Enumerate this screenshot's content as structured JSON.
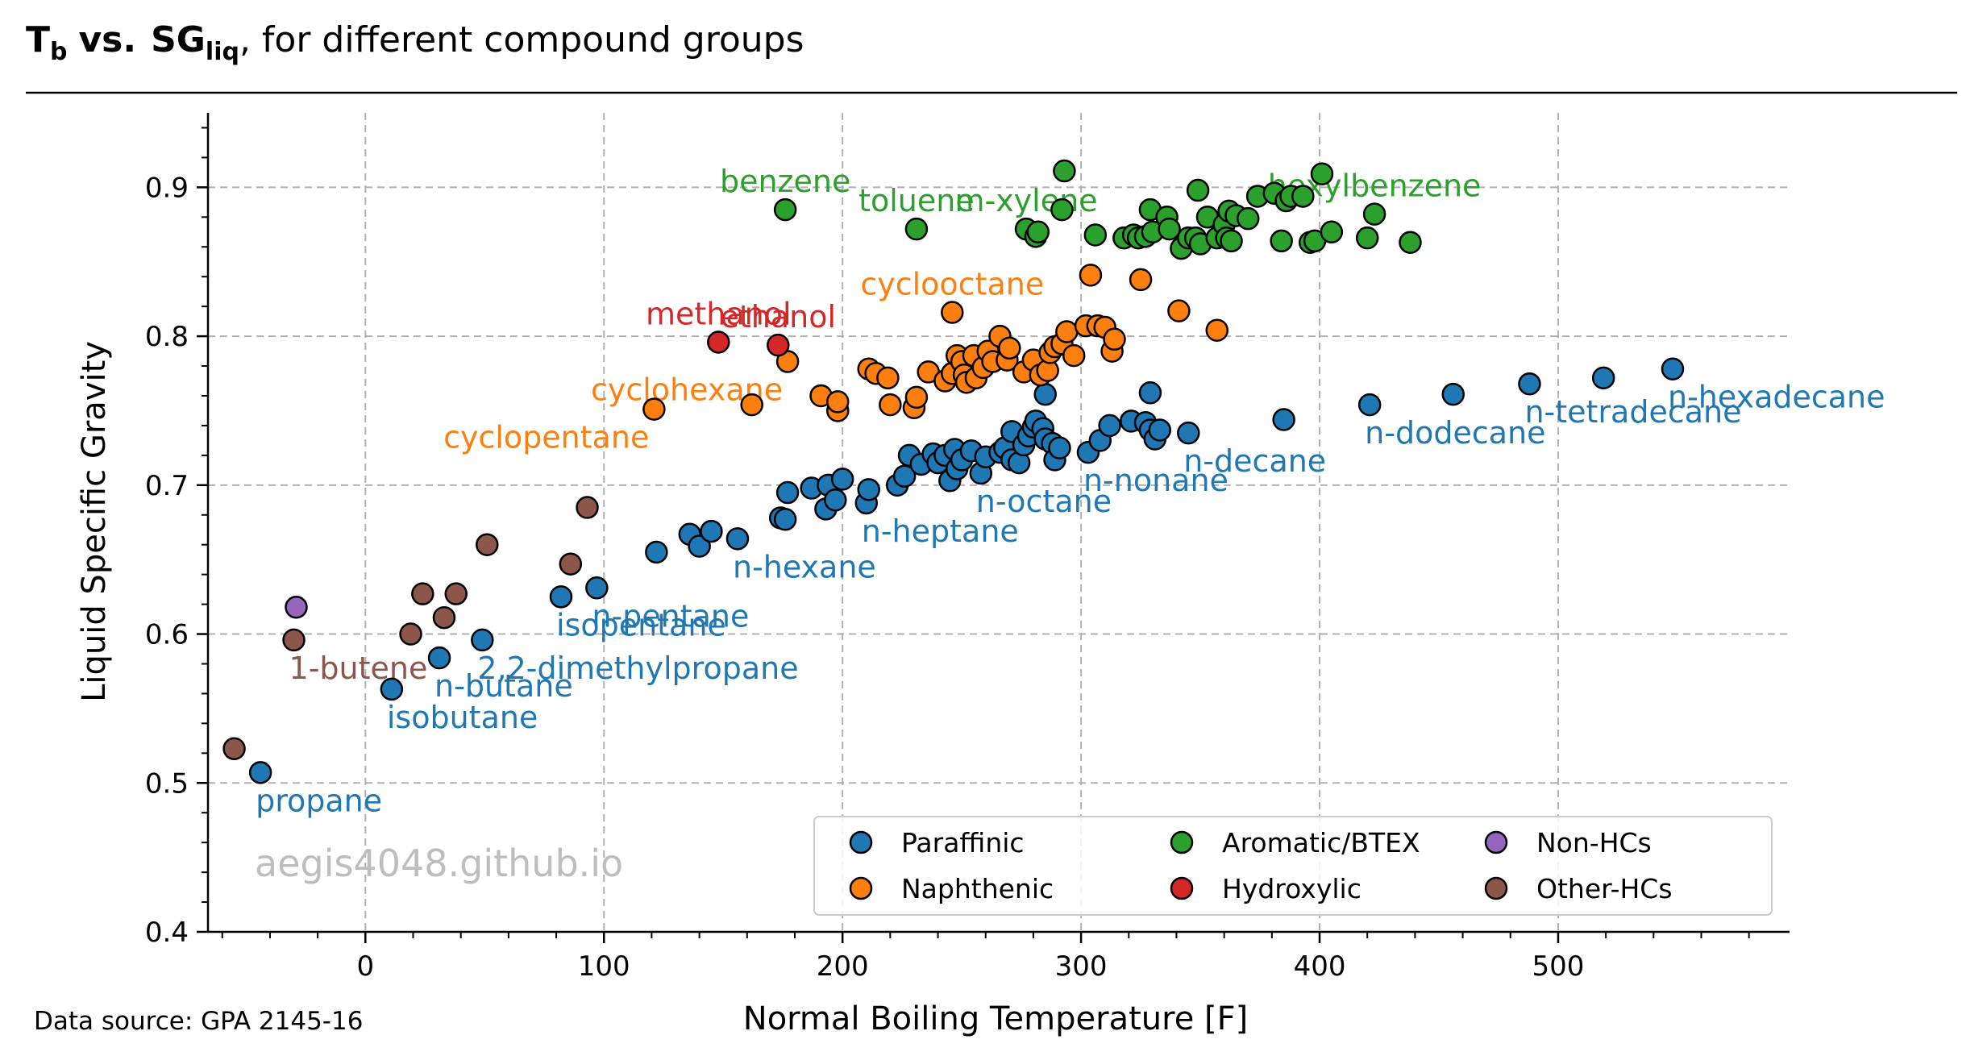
{
  "header": {
    "title_tb_main": "T",
    "title_tb_sub": "b",
    "title_vs": "vs.",
    "title_sg_main": "SG",
    "title_sg_sub": "liq",
    "title_rest": ", for different compound groups"
  },
  "footer": {
    "source": "Data source: GPA 2145-16",
    "watermark": "aegis4048.github.io"
  },
  "chart_data": {
    "type": "scatter",
    "xlabel": "Normal Boiling Temperature [F]",
    "ylabel": "Liquid Specific Gravity",
    "xlim": [
      -66,
      597
    ],
    "ylim": [
      0.4,
      0.95
    ],
    "x_ticks": [
      0,
      100,
      200,
      300,
      400,
      500
    ],
    "y_ticks": [
      0.4,
      0.5,
      0.6,
      0.7,
      0.8,
      0.9
    ],
    "x_tick_labels": [
      "0",
      "100",
      "200",
      "300",
      "400",
      "500"
    ],
    "y_tick_labels": [
      "0.4",
      "0.5",
      "0.6",
      "0.7",
      "0.8",
      "0.9"
    ],
    "grid": true,
    "legend_position": "lower-right",
    "legend_columns": 3,
    "series": [
      {
        "name": "Paraffinic",
        "color": "#1f77b4",
        "points": [
          [
            -44,
            0.507
          ],
          [
            11,
            0.563
          ],
          [
            31,
            0.584
          ],
          [
            49,
            0.596
          ],
          [
            82,
            0.625
          ],
          [
            97,
            0.631
          ],
          [
            122,
            0.655
          ],
          [
            136,
            0.667
          ],
          [
            140,
            0.659
          ],
          [
            145,
            0.669
          ],
          [
            156,
            0.664
          ],
          [
            174,
            0.678
          ],
          [
            176,
            0.677
          ],
          [
            177,
            0.695
          ],
          [
            187,
            0.698
          ],
          [
            194,
            0.7
          ],
          [
            193,
            0.684
          ],
          [
            197,
            0.69
          ],
          [
            200,
            0.704
          ],
          [
            210,
            0.688
          ],
          [
            211,
            0.697
          ],
          [
            223,
            0.7
          ],
          [
            226,
            0.706
          ],
          [
            228,
            0.72
          ],
          [
            233,
            0.714
          ],
          [
            238,
            0.721
          ],
          [
            240,
            0.715
          ],
          [
            243,
            0.72
          ],
          [
            245,
            0.703
          ],
          [
            247,
            0.724
          ],
          [
            248,
            0.711
          ],
          [
            250,
            0.717
          ],
          [
            254,
            0.723
          ],
          [
            258,
            0.708
          ],
          [
            260,
            0.719
          ],
          [
            266,
            0.722
          ],
          [
            268,
            0.725
          ],
          [
            271,
            0.717
          ],
          [
            271,
            0.736
          ],
          [
            274,
            0.715
          ],
          [
            276,
            0.727
          ],
          [
            278,
            0.733
          ],
          [
            280,
            0.739
          ],
          [
            281,
            0.743
          ],
          [
            284,
            0.738
          ],
          [
            285,
            0.731
          ],
          [
            285,
            0.761
          ],
          [
            288,
            0.728
          ],
          [
            289,
            0.717
          ],
          [
            291,
            0.725
          ],
          [
            303,
            0.722
          ],
          [
            308,
            0.73
          ],
          [
            312,
            0.74
          ],
          [
            321,
            0.743
          ],
          [
            327,
            0.742
          ],
          [
            329,
            0.737
          ],
          [
            329,
            0.762
          ],
          [
            331,
            0.731
          ],
          [
            333,
            0.737
          ],
          [
            345,
            0.735
          ],
          [
            385,
            0.744
          ],
          [
            421,
            0.754
          ],
          [
            456,
            0.761
          ],
          [
            488,
            0.768
          ],
          [
            519,
            0.772
          ],
          [
            548,
            0.778
          ]
        ]
      },
      {
        "name": "Naphthenic",
        "color": "#ff7f0e",
        "points": [
          [
            121,
            0.751
          ],
          [
            162,
            0.754
          ],
          [
            177,
            0.783
          ],
          [
            191,
            0.76
          ],
          [
            198,
            0.75
          ],
          [
            198,
            0.756
          ],
          [
            211,
            0.778
          ],
          [
            214,
            0.775
          ],
          [
            219,
            0.772
          ],
          [
            220,
            0.754
          ],
          [
            230,
            0.752
          ],
          [
            231,
            0.759
          ],
          [
            236,
            0.776
          ],
          [
            243,
            0.77
          ],
          [
            246,
            0.775
          ],
          [
            246,
            0.816
          ],
          [
            248,
            0.787
          ],
          [
            250,
            0.783
          ],
          [
            251,
            0.774
          ],
          [
            252,
            0.769
          ],
          [
            255,
            0.787
          ],
          [
            256,
            0.772
          ],
          [
            259,
            0.779
          ],
          [
            261,
            0.79
          ],
          [
            263,
            0.783
          ],
          [
            266,
            0.8
          ],
          [
            269,
            0.784
          ],
          [
            270,
            0.792
          ],
          [
            276,
            0.776
          ],
          [
            280,
            0.784
          ],
          [
            283,
            0.774
          ],
          [
            286,
            0.777
          ],
          [
            287,
            0.789
          ],
          [
            289,
            0.793
          ],
          [
            292,
            0.795
          ],
          [
            294,
            0.803
          ],
          [
            297,
            0.787
          ],
          [
            302,
            0.807
          ],
          [
            304,
            0.841
          ],
          [
            307,
            0.807
          ],
          [
            310,
            0.806
          ],
          [
            313,
            0.79
          ],
          [
            314,
            0.798
          ],
          [
            325,
            0.838
          ],
          [
            341,
            0.817
          ],
          [
            357,
            0.804
          ]
        ]
      },
      {
        "name": "Aromatic/BTEX",
        "color": "#2ca02c",
        "points": [
          [
            176,
            0.885
          ],
          [
            231,
            0.872
          ],
          [
            277,
            0.872
          ],
          [
            281,
            0.867
          ],
          [
            282,
            0.87
          ],
          [
            292,
            0.885
          ],
          [
            293,
            0.911
          ],
          [
            306,
            0.868
          ],
          [
            318,
            0.866
          ],
          [
            322,
            0.868
          ],
          [
            324,
            0.866
          ],
          [
            327,
            0.867
          ],
          [
            329,
            0.885
          ],
          [
            330,
            0.87
          ],
          [
            336,
            0.88
          ],
          [
            337,
            0.872
          ],
          [
            342,
            0.859
          ],
          [
            345,
            0.866
          ],
          [
            348,
            0.866
          ],
          [
            349,
            0.898
          ],
          [
            350,
            0.862
          ],
          [
            353,
            0.88
          ],
          [
            357,
            0.866
          ],
          [
            360,
            0.875
          ],
          [
            361,
            0.866
          ],
          [
            362,
            0.884
          ],
          [
            363,
            0.864
          ],
          [
            365,
            0.881
          ],
          [
            370,
            0.879
          ],
          [
            374,
            0.894
          ],
          [
            381,
            0.896
          ],
          [
            384,
            0.864
          ],
          [
            386,
            0.891
          ],
          [
            388,
            0.894
          ],
          [
            393,
            0.894
          ],
          [
            396,
            0.863
          ],
          [
            398,
            0.864
          ],
          [
            401,
            0.909
          ],
          [
            405,
            0.87
          ],
          [
            420,
            0.866
          ],
          [
            423,
            0.882
          ],
          [
            438,
            0.863
          ]
        ]
      },
      {
        "name": "Hydroxylic",
        "color": "#d62728",
        "points": [
          [
            148,
            0.796
          ],
          [
            173,
            0.794
          ]
        ]
      },
      {
        "name": "Non-HCs",
        "color": "#9467bd",
        "points": [
          [
            -29,
            0.618
          ]
        ]
      },
      {
        "name": "Other-HCs",
        "color": "#8c564b",
        "points": [
          [
            -55,
            0.523
          ],
          [
            -30,
            0.596
          ],
          [
            19,
            0.6
          ],
          [
            24,
            0.627
          ],
          [
            33,
            0.611
          ],
          [
            38,
            0.627
          ],
          [
            51,
            0.66
          ],
          [
            86,
            0.647
          ],
          [
            93,
            0.685
          ]
        ]
      }
    ],
    "annotations": [
      {
        "text": "propane",
        "x": -44,
        "y": 0.507,
        "color": "#1f77b4"
      },
      {
        "text": "isobutane",
        "x": 11,
        "y": 0.563,
        "color": "#1f77b4"
      },
      {
        "text": "n-butane",
        "x": 31,
        "y": 0.584,
        "color": "#1f77b4"
      },
      {
        "text": "2,2-dimethylpropane",
        "x": 49,
        "y": 0.596,
        "color": "#1f77b4"
      },
      {
        "text": "isopentane",
        "x": 82,
        "y": 0.625,
        "color": "#1f77b4"
      },
      {
        "text": "n-pentane",
        "x": 97,
        "y": 0.631,
        "color": "#1f77b4"
      },
      {
        "text": "n-hexane",
        "x": 156,
        "y": 0.664,
        "color": "#1f77b4"
      },
      {
        "text": "n-heptane",
        "x": 210,
        "y": 0.688,
        "color": "#1f77b4"
      },
      {
        "text": "n-octane",
        "x": 258,
        "y": 0.708,
        "color": "#1f77b4"
      },
      {
        "text": "n-nonane",
        "x": 303,
        "y": 0.722,
        "color": "#1f77b4"
      },
      {
        "text": "n-decane",
        "x": 345,
        "y": 0.735,
        "color": "#1f77b4"
      },
      {
        "text": "n-dodecane",
        "x": 421,
        "y": 0.754,
        "color": "#1f77b4"
      },
      {
        "text": "n-tetradecane",
        "x": 488,
        "y": 0.768,
        "color": "#1f77b4"
      },
      {
        "text": "n-hexadecane",
        "x": 548,
        "y": 0.778,
        "color": "#1f77b4"
      },
      {
        "text": "cyclopentane",
        "x": 121,
        "y": 0.751,
        "color": "#ff7f0e",
        "anchor": "end"
      },
      {
        "text": "cyclohexane",
        "x": 177,
        "y": 0.783,
        "color": "#ff7f0e",
        "anchor": "end"
      },
      {
        "text": "cyclooctane",
        "x": 246,
        "y": 0.816,
        "color": "#ff7f0e",
        "anchor": "middle"
      },
      {
        "text": "methanol",
        "x": 148,
        "y": 0.796,
        "color": "#d62728",
        "anchor": "middle"
      },
      {
        "text": "ethanol",
        "x": 173,
        "y": 0.794,
        "color": "#d62728",
        "anchor": "middle"
      },
      {
        "text": "benzene",
        "x": 176,
        "y": 0.885,
        "color": "#2ca02c",
        "anchor": "middle"
      },
      {
        "text": "toluene",
        "x": 231,
        "y": 0.872,
        "color": "#2ca02c",
        "anchor": "middle"
      },
      {
        "text": "m-xylene",
        "x": 277,
        "y": 0.872,
        "color": "#2ca02c",
        "anchor": "middle"
      },
      {
        "text": "hexylbenzene",
        "x": 423,
        "y": 0.882,
        "color": "#2ca02c",
        "anchor": "middle"
      },
      {
        "text": "1-butene",
        "x": -30,
        "y": 0.596,
        "color": "#8c564b"
      }
    ]
  }
}
